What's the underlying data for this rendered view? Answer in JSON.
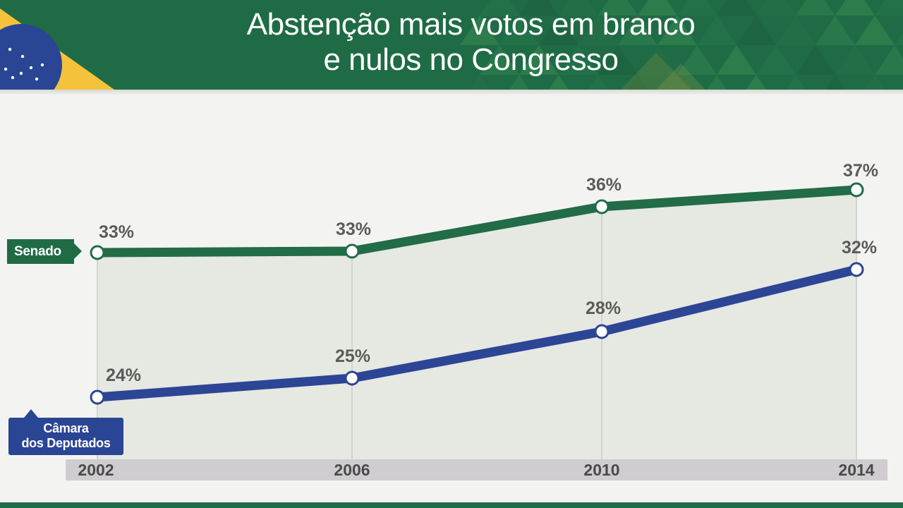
{
  "header": {
    "title_line1": "Abstenção mais votos em branco",
    "title_line2": "e nulos no Congresso",
    "colors": {
      "green": "#1f6b45",
      "yellow": "#f5c33b",
      "blue": "#2a4594"
    },
    "flag_icon": "brazil-flag-icon"
  },
  "chart_data": {
    "type": "line",
    "title": "Abstenção mais votos em branco e nulos no Congresso",
    "categories": [
      "2002",
      "2006",
      "2010",
      "2014"
    ],
    "series": [
      {
        "name": "Senado",
        "values": [
          33,
          33,
          36,
          37
        ],
        "labels": [
          "33%",
          "33%",
          "36%",
          "37%"
        ],
        "color": "#226c48"
      },
      {
        "name": "Câmara dos Deputados",
        "values": [
          24,
          25,
          28,
          32
        ],
        "labels": [
          "24%",
          "25%",
          "28%",
          "32%"
        ],
        "color": "#2d4595"
      }
    ],
    "unit": "%",
    "grid": "vertical",
    "area_fill": "#e6e8e2",
    "axis_band_color": "#cfcdcf"
  },
  "labels": {
    "senado": "Senado",
    "camara_line1": "Câmara",
    "camara_line2": "dos Deputados"
  }
}
